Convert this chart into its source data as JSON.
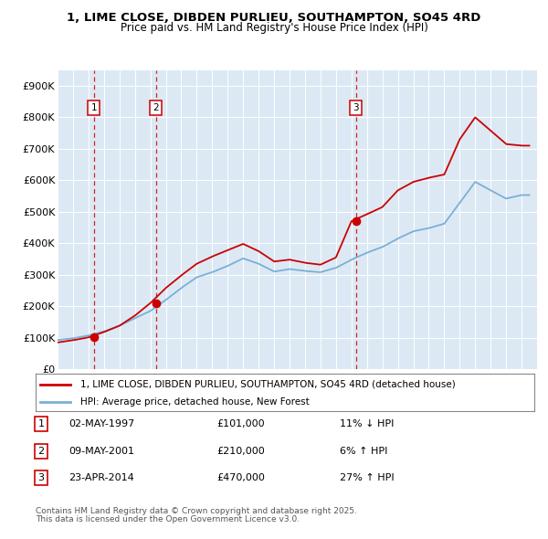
{
  "title": "1, LIME CLOSE, DIBDEN PURLIEU, SOUTHAMPTON, SO45 4RD",
  "subtitle": "Price paid vs. HM Land Registry's House Price Index (HPI)",
  "legend_line1": "1, LIME CLOSE, DIBDEN PURLIEU, SOUTHAMPTON, SO45 4RD (detached house)",
  "legend_line2": "HPI: Average price, detached house, New Forest",
  "transactions": [
    {
      "num": 1,
      "date": "02-MAY-1997",
      "price": 101000,
      "pct": "11%",
      "dir": "↓",
      "year": 1997.35
    },
    {
      "num": 2,
      "date": "09-MAY-2001",
      "price": 210000,
      "pct": "6%",
      "dir": "↑",
      "year": 2001.35
    },
    {
      "num": 3,
      "date": "23-APR-2014",
      "price": 470000,
      "pct": "27%",
      "dir": "↑",
      "year": 2014.3
    }
  ],
  "footnote1": "Contains HM Land Registry data © Crown copyright and database right 2025.",
  "footnote2": "This data is licensed under the Open Government Licence v3.0.",
  "price_line_color": "#cc0000",
  "hpi_line_color": "#7ab0d4",
  "background_color": "#dce9f5",
  "ylim": [
    0,
    950000
  ],
  "yticks": [
    0,
    100000,
    200000,
    300000,
    400000,
    500000,
    600000,
    700000,
    800000,
    900000
  ],
  "xmin": 1995.0,
  "xmax": 2026.0,
  "years_hpi": [
    1995,
    1996,
    1997,
    1998,
    1999,
    2000,
    2001,
    2002,
    2003,
    2004,
    2005,
    2006,
    2007,
    2008,
    2009,
    2010,
    2011,
    2012,
    2013,
    2014,
    2015,
    2016,
    2017,
    2018,
    2019,
    2020,
    2021,
    2022,
    2023,
    2024,
    2025
  ],
  "hpi_values": [
    93000,
    98000,
    107000,
    120000,
    138000,
    162000,
    185000,
    220000,
    258000,
    292000,
    308000,
    328000,
    352000,
    335000,
    310000,
    318000,
    312000,
    308000,
    322000,
    348000,
    370000,
    388000,
    415000,
    438000,
    448000,
    462000,
    528000,
    595000,
    568000,
    542000,
    553000
  ],
  "prop_years": [
    1995,
    1996,
    1997,
    1998,
    1999,
    2000,
    2001,
    2002,
    2003,
    2004,
    2005,
    2006,
    2007,
    2008,
    2009,
    2010,
    2011,
    2012,
    2013,
    2014,
    2015,
    2016,
    2017,
    2018,
    2019,
    2020,
    2021,
    2022,
    2023,
    2024,
    2025
  ],
  "prop_values": [
    85000,
    92000,
    101000,
    118000,
    138000,
    170000,
    210000,
    258000,
    298000,
    335000,
    358000,
    378000,
    398000,
    375000,
    342000,
    348000,
    338000,
    332000,
    355000,
    470000,
    492000,
    515000,
    568000,
    595000,
    608000,
    618000,
    730000,
    800000,
    758000,
    715000,
    710000
  ]
}
